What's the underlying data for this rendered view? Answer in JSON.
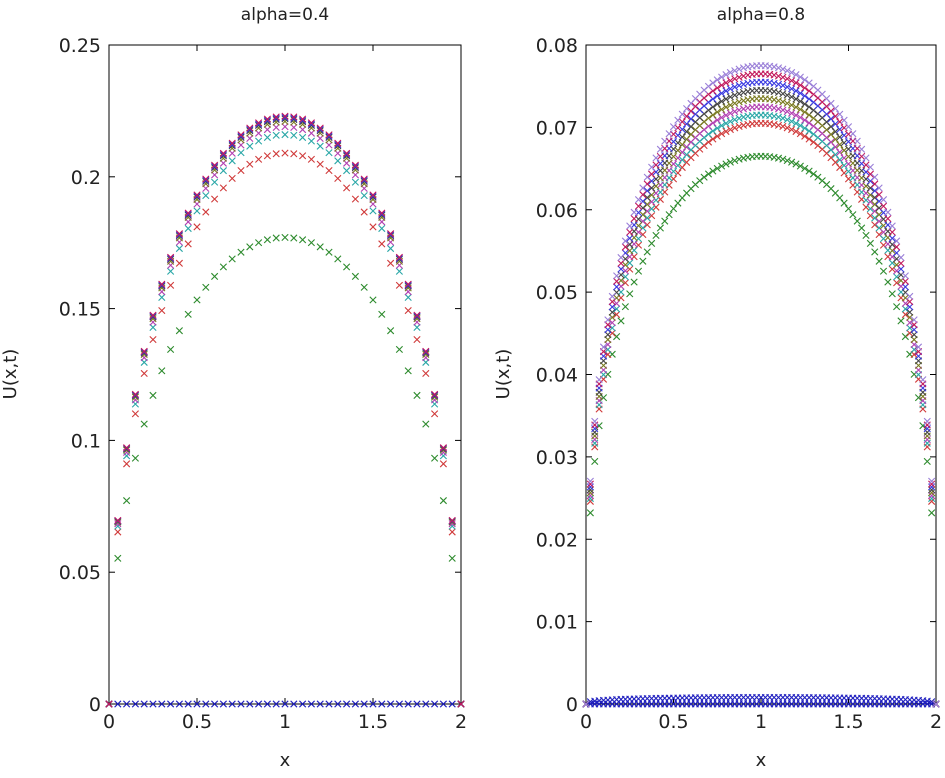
{
  "chart_data": [
    {
      "type": "scatter",
      "title": "alpha=0.4",
      "xlabel": "x",
      "ylabel": "U(x,t)",
      "xlim": [
        0,
        2
      ],
      "ylim": [
        0,
        0.25
      ],
      "xticks": [
        "0",
        "0.5",
        "1",
        "1.5",
        "2"
      ],
      "yticks": [
        "0",
        "0.05",
        "0.1",
        "0.15",
        "0.2",
        "0.25"
      ],
      "marker": "x",
      "grid": false,
      "x_range": [
        0,
        2
      ],
      "x_step": 0.05,
      "profile": "sqrt(x(2-x))",
      "series": [
        {
          "peak": 0.0,
          "color": "#1f1fbf"
        },
        {
          "peak": 0.177,
          "color": "#2e8b2e"
        },
        {
          "peak": 0.209,
          "color": "#d03a3a"
        },
        {
          "peak": 0.216,
          "color": "#2aa7a7"
        },
        {
          "peak": 0.219,
          "color": "#b23fb2"
        },
        {
          "peak": 0.221,
          "color": "#7a7a20"
        },
        {
          "peak": 0.222,
          "color": "#444444"
        },
        {
          "peak": 0.2225,
          "color": "#3a3ae0"
        },
        {
          "peak": 0.223,
          "color": "#c2185b"
        }
      ]
    },
    {
      "type": "scatter",
      "title": "alpha=0.8",
      "xlabel": "x",
      "ylabel": "U(x,t)",
      "xlim": [
        0,
        2
      ],
      "ylim": [
        0,
        0.08
      ],
      "xticks": [
        "0",
        "0.5",
        "1",
        "1.5",
        "2"
      ],
      "yticks": [
        "0",
        "0.01",
        "0.02",
        "0.03",
        "0.04",
        "0.05",
        "0.06",
        "0.07",
        "0.08"
      ],
      "marker": "x",
      "grid": false,
      "x_range": [
        0,
        2
      ],
      "x_step": 0.025,
      "profile": "(x(2-x))^0.35",
      "series": [
        {
          "peak": 0.0,
          "color": "#1f1fbf"
        },
        {
          "peak": 0.0008,
          "color": "#1f1fbf"
        },
        {
          "peak": 0.0665,
          "color": "#2e8b2e"
        },
        {
          "peak": 0.0705,
          "color": "#d03a3a"
        },
        {
          "peak": 0.0715,
          "color": "#2aa7a7"
        },
        {
          "peak": 0.0725,
          "color": "#b23fb2"
        },
        {
          "peak": 0.0735,
          "color": "#7a7a20"
        },
        {
          "peak": 0.0745,
          "color": "#444444"
        },
        {
          "peak": 0.0755,
          "color": "#3a3ae0"
        },
        {
          "peak": 0.0765,
          "color": "#c2185b"
        },
        {
          "peak": 0.0775,
          "color": "#9a7fd8"
        }
      ]
    }
  ]
}
